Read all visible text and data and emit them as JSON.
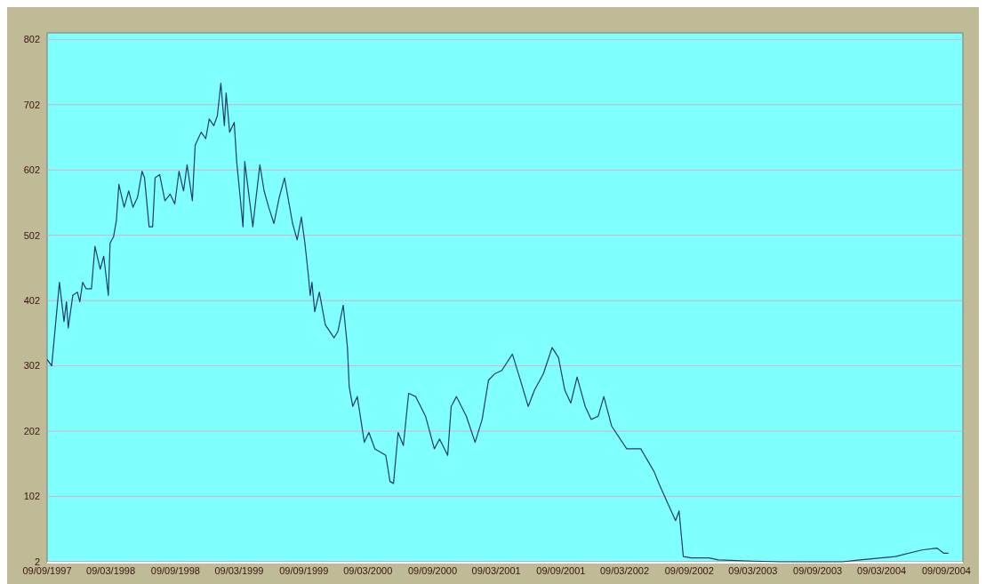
{
  "chart_data": {
    "type": "line",
    "grid": "y",
    "line_style": "solid",
    "xlim": [
      "1997-09-09",
      "2004-10-26"
    ],
    "xticks": [
      {
        "value": "1997-09-09",
        "label": "09/09/1997"
      },
      {
        "value": "1998-03-09",
        "label": "09/03/1998"
      },
      {
        "value": "1998-09-09",
        "label": "09/09/1998"
      },
      {
        "value": "1999-03-09",
        "label": "09/03/1999"
      },
      {
        "value": "1999-09-09",
        "label": "09/09/1999"
      },
      {
        "value": "2000-03-09",
        "label": "09/03/2000"
      },
      {
        "value": "2000-09-09",
        "label": "09/09/2000"
      },
      {
        "value": "2001-03-09",
        "label": "09/03/2001"
      },
      {
        "value": "2001-09-09",
        "label": "09/09/2001"
      },
      {
        "value": "2002-03-09",
        "label": "09/03/2002"
      },
      {
        "value": "2002-09-09",
        "label": "09/09/2002"
      },
      {
        "value": "2003-03-09",
        "label": "09/03/2003"
      },
      {
        "value": "2003-09-09",
        "label": "09/09/2003"
      },
      {
        "value": "2004-03-09",
        "label": "09/03/2004"
      },
      {
        "value": "2004-09-09",
        "label": "09/09/2004"
      }
    ],
    "ylim": [
      2,
      812
    ],
    "yticks": [
      2,
      102,
      202,
      302,
      402,
      502,
      602,
      702,
      802
    ],
    "x": [
      "1997-09-09",
      "1997-09-22",
      "1997-10-14",
      "1997-10-27",
      "1997-11-03",
      "1997-11-08",
      "1997-11-21",
      "1997-12-04",
      "1997-12-11",
      "1997-12-19",
      "1997-12-29",
      "1998-01-13",
      "1998-01-23",
      "1998-02-07",
      "1998-02-17",
      "1998-03-02",
      "1998-03-07",
      "1998-03-17",
      "1998-03-25",
      "1998-04-01",
      "1998-04-16",
      "1998-04-29",
      "1998-05-11",
      "1998-05-24",
      "1998-06-06",
      "1998-06-13",
      "1998-06-26",
      "1998-07-06",
      "1998-07-13",
      "1998-07-26",
      "1998-08-10",
      "1998-08-25",
      "1998-09-07",
      "1998-09-19",
      "1998-10-02",
      "1998-10-12",
      "1998-10-27",
      "1998-11-04",
      "1998-11-21",
      "1998-12-04",
      "1998-12-14",
      "1998-12-27",
      "1999-01-06",
      "1999-01-16",
      "1999-01-26",
      "1999-01-31",
      "1999-02-10",
      "1999-02-23",
      "1999-03-02",
      "1999-03-12",
      "1999-03-20",
      "1999-03-25",
      "1999-04-02",
      "1999-04-17",
      "1999-04-24",
      "1999-05-07",
      "1999-05-19",
      "1999-06-01",
      "1999-06-16",
      "1999-07-01",
      "1999-07-16",
      "1999-08-08",
      "1999-08-21",
      "1999-09-02",
      "1999-09-12",
      "1999-09-22",
      "1999-09-27",
      "1999-10-02",
      "1999-10-10",
      "1999-10-23",
      "1999-11-09",
      "1999-12-04",
      "1999-12-15",
      "1999-12-30",
      "2000-01-11",
      "2000-01-16",
      "2000-01-26",
      "2000-02-08",
      "2000-02-28",
      "2000-03-12",
      "2000-03-29",
      "2000-04-29",
      "2000-05-11",
      "2000-05-21",
      "2000-06-03",
      "2000-06-18",
      "2000-07-03",
      "2000-07-23",
      "2000-08-20",
      "2000-09-14",
      "2000-09-29",
      "2000-10-22",
      "2000-11-01",
      "2000-11-16",
      "2000-12-14",
      "2001-01-08",
      "2001-01-28",
      "2001-02-15",
      "2001-03-05",
      "2001-03-25",
      "2001-04-24",
      "2001-05-14",
      "2001-06-08",
      "2001-06-26",
      "2001-07-21",
      "2001-08-15",
      "2001-09-02",
      "2001-09-20",
      "2001-10-07",
      "2001-10-25",
      "2001-11-17",
      "2001-12-04",
      "2001-12-24",
      "2002-01-09",
      "2002-01-31",
      "2002-03-15",
      "2002-04-24",
      "2002-06-01",
      "2002-06-16",
      "2002-08-01",
      "2002-08-11",
      "2002-08-23",
      "2002-09-15",
      "2002-11-04",
      "2002-11-30",
      "2003-03-10",
      "2003-05-25",
      "2003-11-18",
      "2004-01-08",
      "2004-04-17",
      "2004-07-01",
      "2004-08-13",
      "2004-09-02",
      "2004-09-15"
    ],
    "series": [
      {
        "color": "#1c3c6c",
        "values": [
          312,
          302,
          430,
          370,
          400,
          360,
          410,
          415,
          400,
          430,
          420,
          420,
          485,
          450,
          470,
          410,
          490,
          500,
          525,
          580,
          545,
          570,
          545,
          560,
          600,
          590,
          515,
          515,
          590,
          595,
          555,
          565,
          550,
          600,
          570,
          610,
          555,
          640,
          660,
          650,
          680,
          670,
          685,
          735,
          670,
          720,
          660,
          675,
          615,
          560,
          515,
          615,
          580,
          515,
          550,
          610,
          570,
          545,
          520,
          560,
          590,
          520,
          495,
          530,
          490,
          440,
          410,
          430,
          385,
          415,
          365,
          345,
          355,
          395,
          330,
          270,
          240,
          255,
          185,
          200,
          175,
          165,
          125,
          122,
          200,
          180,
          260,
          255,
          225,
          175,
          190,
          165,
          240,
          255,
          225,
          185,
          220,
          280,
          290,
          295,
          320,
          285,
          240,
          265,
          290,
          330,
          315,
          265,
          245,
          285,
          240,
          220,
          225,
          255,
          210,
          175,
          175,
          140,
          120,
          65,
          80,
          10,
          8,
          8,
          5,
          3,
          2,
          2,
          5,
          10,
          20,
          23,
          15,
          15
        ]
      }
    ]
  }
}
